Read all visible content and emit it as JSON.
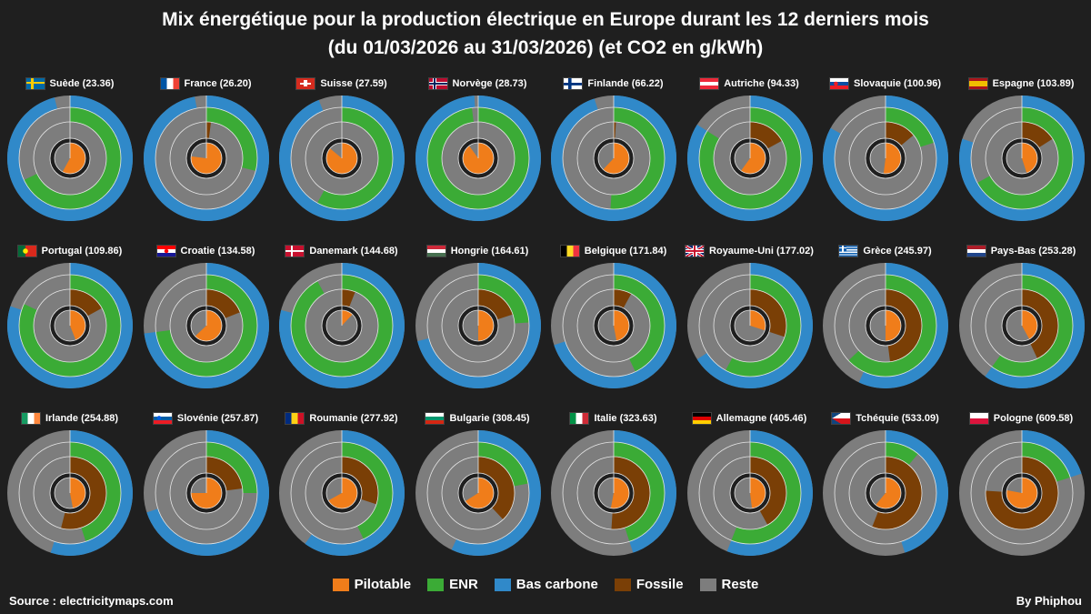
{
  "title": {
    "line1": "Mix énergétique pour la production électrique en Europe durant les 12 derniers mois",
    "line2": "(du 01/03/2026 au 31/03/2026) (et CO2 en g/kWh)"
  },
  "legend": [
    {
      "label": "Pilotable",
      "color": "#f07d1a"
    },
    {
      "label": "ENR",
      "color": "#3bab36"
    },
    {
      "label": "Bas carbone",
      "color": "#3089c9"
    },
    {
      "label": "Fossile",
      "color": "#7a3f06"
    },
    {
      "label": "Reste",
      "color": "#7d7d7d"
    }
  ],
  "footer": {
    "source": "Source : electricitymaps.com",
    "author": "By Phiphou"
  },
  "chart_data": {
    "type": "nested-donut",
    "rings": {
      "outer": "Bas carbone share (blue) vs Reste (grey)",
      "middle": "ENR share (green) vs Reste (grey)",
      "inner": "Fossile share (brown) vs Reste (grey)",
      "center": "Pilotable share (orange)"
    },
    "countries": [
      {
        "name": "Suède",
        "co2": "23.36",
        "flag": "sweden-flag",
        "bas_carbone": 0.96,
        "enr": 0.68,
        "fossile": 0.0,
        "pilotable": 0.58
      },
      {
        "name": "France",
        "co2": "26.20",
        "flag": "france-flag",
        "bas_carbone": 0.97,
        "enr": 0.29,
        "fossile": 0.02,
        "pilotable": 0.77
      },
      {
        "name": "Suisse",
        "co2": "27.59",
        "flag": "switzerland-flag",
        "bas_carbone": 0.94,
        "enr": 0.58,
        "fossile": 0.0,
        "pilotable": 0.86
      },
      {
        "name": "Norvège",
        "co2": "28.73",
        "flag": "norway-flag",
        "bas_carbone": 0.99,
        "enr": 0.98,
        "fossile": 0.0,
        "pilotable": 0.9
      },
      {
        "name": "Finlande",
        "co2": "66.22",
        "flag": "finland-flag",
        "bas_carbone": 0.95,
        "enr": 0.51,
        "fossile": 0.01,
        "pilotable": 0.62
      },
      {
        "name": "Autriche",
        "co2": "94.33",
        "flag": "austria-flag",
        "bas_carbone": 0.84,
        "enr": 0.84,
        "fossile": 0.17,
        "pilotable": 0.6
      },
      {
        "name": "Slovaquie",
        "co2": "100.96",
        "flag": "slovakia-flag",
        "bas_carbone": 0.83,
        "enr": 0.2,
        "fossile": 0.14,
        "pilotable": 0.52
      },
      {
        "name": "Espagne",
        "co2": "103.89",
        "flag": "spain-flag",
        "bas_carbone": 0.8,
        "enr": 0.67,
        "fossile": 0.16,
        "pilotable": 0.45
      },
      {
        "name": "Portugal",
        "co2": "109.86",
        "flag": "portugal-flag",
        "bas_carbone": 0.8,
        "enr": 0.82,
        "fossile": 0.17,
        "pilotable": 0.44
      },
      {
        "name": "Croatie",
        "co2": "134.58",
        "flag": "croatia-flag",
        "bas_carbone": 0.73,
        "enr": 0.73,
        "fossile": 0.19,
        "pilotable": 0.63
      },
      {
        "name": "Danemark",
        "co2": "144.68",
        "flag": "denmark-flag",
        "bas_carbone": 0.79,
        "enr": 0.92,
        "fossile": 0.06,
        "pilotable": 0.12
      },
      {
        "name": "Hongrie",
        "co2": "164.61",
        "flag": "hungary-flag",
        "bas_carbone": 0.71,
        "enr": 0.24,
        "fossile": 0.2,
        "pilotable": 0.5
      },
      {
        "name": "Belgique",
        "co2": "171.84",
        "flag": "belgium-flag",
        "bas_carbone": 0.7,
        "enr": 0.43,
        "fossile": 0.08,
        "pilotable": 0.47
      },
      {
        "name": "Royaume-Uni",
        "co2": "177.02",
        "flag": "uk-flag",
        "bas_carbone": 0.66,
        "enr": 0.58,
        "fossile": 0.3,
        "pilotable": 0.3
      },
      {
        "name": "Grèce",
        "co2": "245.97",
        "flag": "greece-flag",
        "bas_carbone": 0.57,
        "enr": 0.63,
        "fossile": 0.48,
        "pilotable": 0.5
      },
      {
        "name": "Pays-Bas",
        "co2": "253.28",
        "flag": "netherlands-flag",
        "bas_carbone": 0.6,
        "enr": 0.6,
        "fossile": 0.43,
        "pilotable": 0.42
      },
      {
        "name": "Irlande",
        "co2": "254.88",
        "flag": "ireland-flag",
        "bas_carbone": 0.55,
        "enr": 0.45,
        "fossile": 0.54,
        "pilotable": 0.47
      },
      {
        "name": "Slovénie",
        "co2": "257.87",
        "flag": "slovenia-flag",
        "bas_carbone": 0.7,
        "enr": 0.25,
        "fossile": 0.23,
        "pilotable": 0.75
      },
      {
        "name": "Roumanie",
        "co2": "277.92",
        "flag": "romania-flag",
        "bas_carbone": 0.6,
        "enr": 0.43,
        "fossile": 0.3,
        "pilotable": 0.67
      },
      {
        "name": "Bulgarie",
        "co2": "308.45",
        "flag": "bulgaria-flag",
        "bas_carbone": 0.57,
        "enr": 0.22,
        "fossile": 0.38,
        "pilotable": 0.66
      },
      {
        "name": "Italie",
        "co2": "323.63",
        "flag": "italy-flag",
        "bas_carbone": 0.45,
        "enr": 0.45,
        "fossile": 0.51,
        "pilotable": 0.53
      },
      {
        "name": "Allemagne",
        "co2": "405.46",
        "flag": "germany-flag",
        "bas_carbone": 0.56,
        "enr": 0.56,
        "fossile": 0.42,
        "pilotable": 0.48
      },
      {
        "name": "Tchéquie",
        "co2": "533.09",
        "flag": "czechia-flag",
        "bas_carbone": 0.45,
        "enr": 0.11,
        "fossile": 0.56,
        "pilotable": 0.61
      },
      {
        "name": "Pologne",
        "co2": "609.58",
        "flag": "poland-flag",
        "bas_carbone": 0.2,
        "enr": 0.2,
        "fossile": 0.76,
        "pilotable": 0.78
      }
    ]
  }
}
